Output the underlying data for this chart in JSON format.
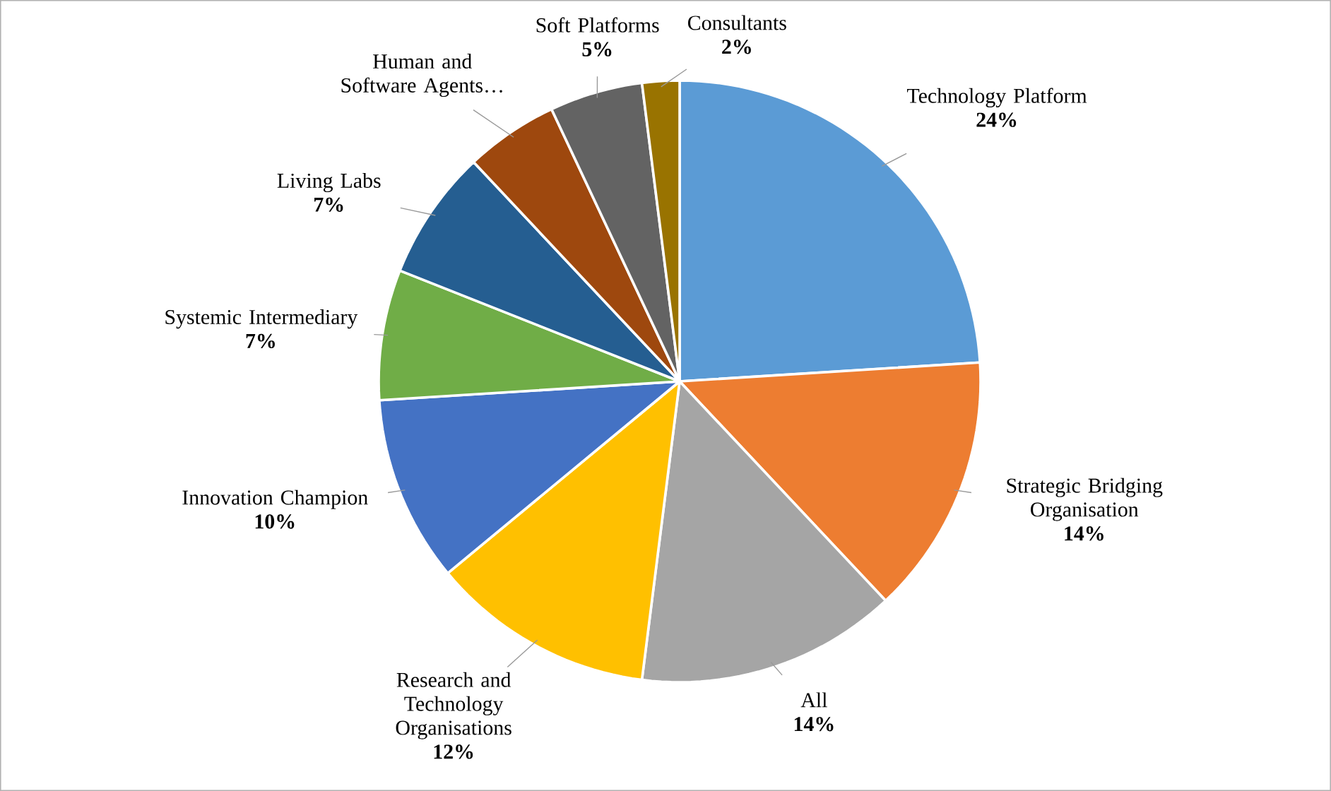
{
  "chart_data": {
    "type": "pie",
    "categories": [
      "Technology Platform",
      "Strategic Bridging Organisation",
      "All",
      "Research and Technology Organisations",
      "Innovation Champion",
      "Systemic Intermediary",
      "Living Labs",
      "Human and Software Agents…",
      "Soft Platforms",
      "Consultants"
    ],
    "values": [
      24,
      14,
      14,
      12,
      10,
      7,
      7,
      5,
      5,
      2
    ],
    "colors": [
      "#5b9bd5",
      "#ed7d31",
      "#a5a5a5",
      "#ffc000",
      "#4472c4",
      "#70ad47",
      "#255e91",
      "#9e480e",
      "#636363",
      "#997300"
    ],
    "value_labels": [
      "24%",
      "14%",
      "14%",
      "12%",
      "10%",
      "7%",
      "7%",
      null,
      "5%",
      "2%"
    ]
  }
}
